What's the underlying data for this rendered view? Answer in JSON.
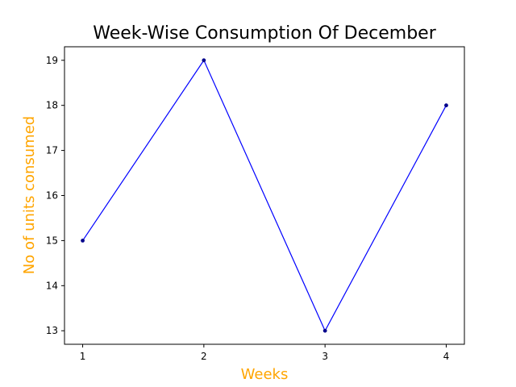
{
  "chart_data": {
    "type": "line",
    "title": "Week-Wise Consumption Of December",
    "xlabel": "Weeks",
    "ylabel": "No of units consumed",
    "x": [
      1,
      2,
      3,
      4
    ],
    "x_ticks": [
      "1",
      "2",
      "3",
      "4"
    ],
    "y_ticks": [
      "13",
      "14",
      "15",
      "16",
      "17",
      "18",
      "19"
    ],
    "series": [
      {
        "values": [
          15,
          19,
          13,
          18
        ],
        "color": "#0000ff",
        "marker_color": "#00008b"
      }
    ],
    "xlim": [
      0.85,
      4.15
    ],
    "ylim": [
      12.7,
      19.3
    ],
    "grid": false,
    "label_color": "#ffa500"
  }
}
